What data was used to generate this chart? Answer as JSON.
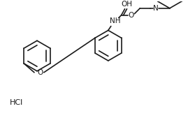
{
  "bg_color": "#ffffff",
  "line_color": "#1a1a1a",
  "line_width": 1.2,
  "font_size": 7.5,
  "fig_width": 2.79,
  "fig_height": 1.69,
  "dpi": 100,
  "hcl_label": "HCl",
  "oh_label": "OH",
  "o_label": "O",
  "n_label": "N",
  "nh_label": "NH",
  "o2_label": "O"
}
